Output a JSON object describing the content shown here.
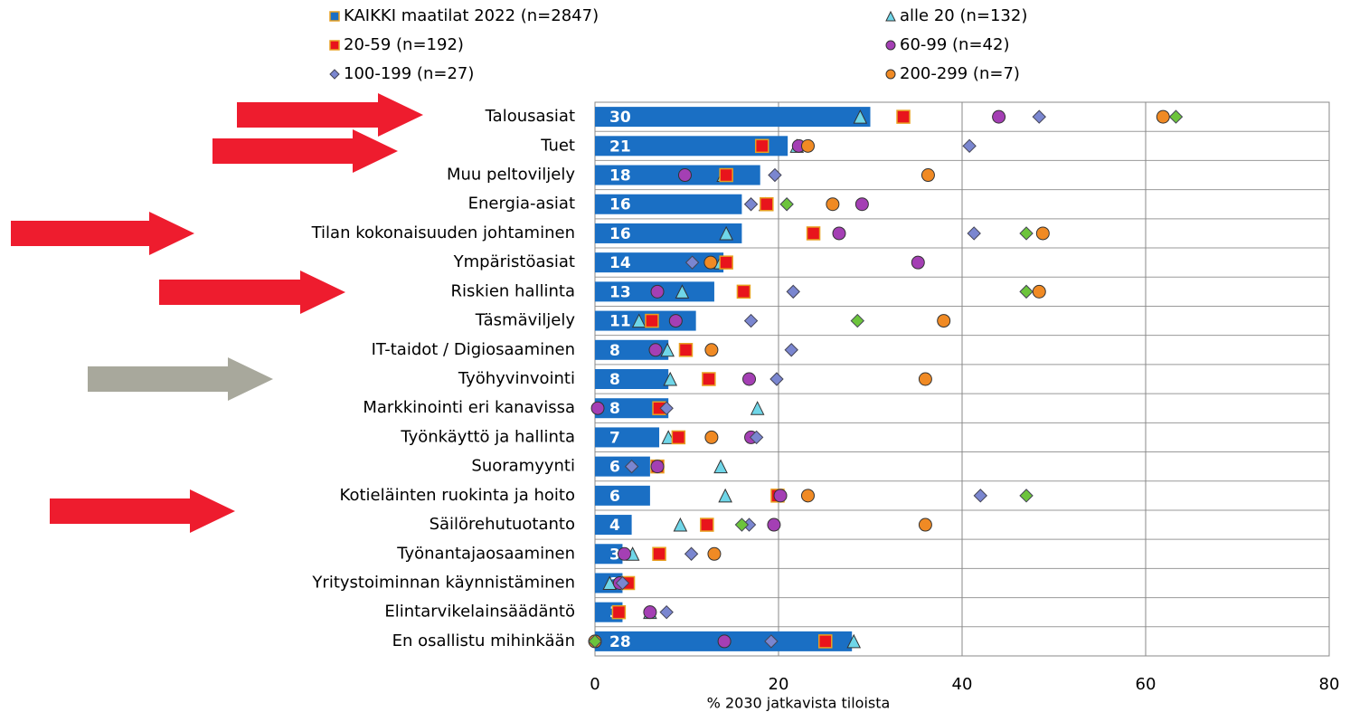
{
  "chart_data": {
    "type": "bar_marker",
    "xlabel": "% 2030 jatkavista tiloista",
    "categories": [
      "Talousasiat",
      "Tuet",
      "Muu peltoviljely",
      "Energia-asiat",
      "Tilan kokonaisuuden johtaminen",
      "Ympäristöasiat",
      "Riskien hallinta",
      "Täsmäviljely",
      "IT-taidot / Digiosaaminen",
      "Työhyvinvointi",
      "Markkinointi eri kanavissa",
      "Työnkäyttö ja hallinta",
      "Suoramyynti",
      "Kotieläinten ruokinta ja hoito",
      "Säilörehutuotanto",
      "Työnantajaosaaminen",
      "Yritystoiminnan käynnistäminen",
      "Elintarvikelainsäädäntö",
      "En osallistu mihinkään"
    ],
    "series": [
      {
        "name": "KAIKKI maatilat 2022 (n=2847)",
        "color": "#1a6fc4",
        "marker": "bar",
        "values": [
          30,
          21,
          18,
          16,
          16,
          14,
          13,
          11,
          8,
          8,
          8,
          7,
          6,
          6,
          4,
          3,
          3,
          3,
          28
        ]
      },
      {
        "name": "alle 20 (n=132)",
        "color": "#6fd6e8",
        "marker": "triangle",
        "values": [
          28.9,
          22,
          14,
          18.6,
          14.3,
          13.7,
          9.5,
          4.8,
          7.9,
          8.2,
          17.7,
          8,
          13.7,
          14.2,
          9.3,
          4.1,
          1.6,
          6,
          28.2
        ]
      },
      {
        "name": "20-59 (n=192)",
        "color": "#e8141c",
        "marker": "square",
        "values": [
          33.6,
          18.2,
          14.3,
          18.7,
          23.8,
          14.3,
          16.2,
          6.2,
          9.9,
          12.4,
          7,
          9.1,
          6.8,
          19.9,
          12.2,
          7,
          3.6,
          2.6,
          25.1
        ]
      },
      {
        "name": "60-99 (n=42)",
        "color": "#a43fb4",
        "marker": "circle",
        "values": [
          44,
          22.2,
          9.8,
          29.1,
          26.6,
          35.2,
          6.8,
          8.8,
          6.6,
          16.8,
          0.3,
          17,
          6.8,
          20.2,
          19.5,
          3.2,
          2.7,
          6,
          14.1
        ]
      },
      {
        "name": "100-199 (n=27)",
        "color": "#7a86d0",
        "marker": "diamond",
        "values": [
          48.4,
          40.8,
          19.6,
          17,
          41.3,
          10.6,
          21.6,
          17,
          21.4,
          19.8,
          7.8,
          17.6,
          4,
          42,
          16.8,
          10.5,
          3,
          7.8,
          19.2
        ]
      },
      {
        "name": "200-299 (n=7)",
        "color": "#f08a24",
        "marker": "circle",
        "values": [
          61.9,
          23.2,
          36.3,
          25.9,
          48.8,
          12.6,
          48.4,
          38,
          12.7,
          36,
          null,
          12.7,
          null,
          23.2,
          36,
          13,
          null,
          null,
          0
        ]
      },
      {
        "color": "#6cc43c",
        "marker": "diamond",
        "values": [
          63.3,
          null,
          null,
          20.9,
          47,
          null,
          47,
          28.6,
          null,
          null,
          null,
          null,
          null,
          47,
          16,
          null,
          null,
          null,
          0
        ]
      }
    ],
    "xlim": [
      0,
      80
    ],
    "xticks": [
      0,
      20,
      40,
      60,
      80
    ],
    "grid": true
  }
}
